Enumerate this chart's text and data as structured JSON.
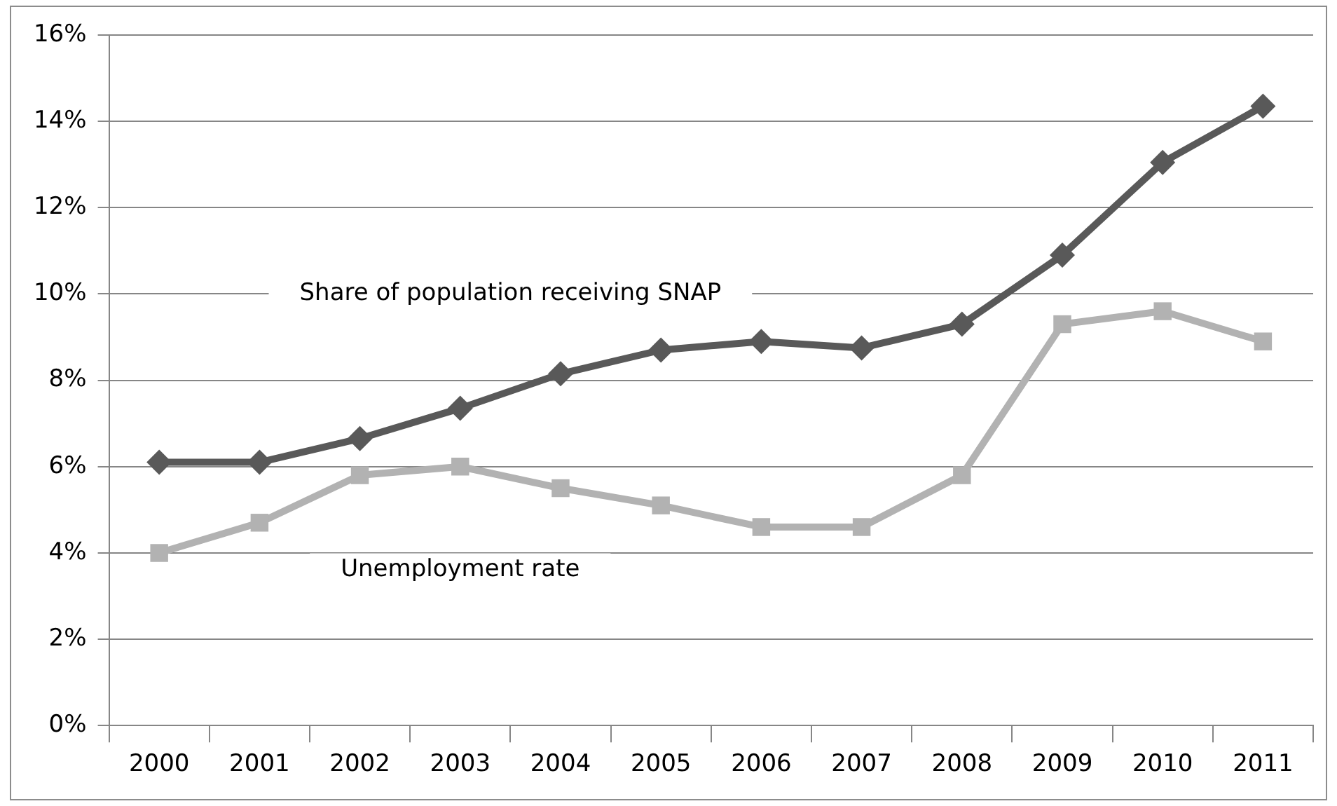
{
  "chart_data": {
    "type": "line",
    "categories": [
      "2000",
      "2001",
      "2002",
      "2003",
      "2004",
      "2005",
      "2006",
      "2007",
      "2008",
      "2009",
      "2010",
      "2011"
    ],
    "series": [
      {
        "name": "Share of population receiving SNAP",
        "color": "#595959",
        "marker": "diamond",
        "values": [
          6.1,
          6.1,
          6.65,
          7.35,
          8.15,
          8.7,
          8.9,
          8.75,
          9.3,
          10.9,
          13.05,
          14.35
        ]
      },
      {
        "name": "Unemployment rate",
        "color": "#b2b2b2",
        "marker": "square",
        "values": [
          4.0,
          4.7,
          5.8,
          6.0,
          5.5,
          5.1,
          4.6,
          4.6,
          5.8,
          9.3,
          9.6,
          8.9
        ]
      }
    ],
    "ylim": [
      0,
      16
    ],
    "yticks": [
      {
        "value": 0,
        "label": "0%"
      },
      {
        "value": 2,
        "label": "2%"
      },
      {
        "value": 4,
        "label": "4%"
      },
      {
        "value": 6,
        "label": "6%"
      },
      {
        "value": 8,
        "label": "8%"
      },
      {
        "value": 10,
        "label": "10%"
      },
      {
        "value": 12,
        "label": "12%"
      },
      {
        "value": 14,
        "label": "14%"
      },
      {
        "value": 16,
        "label": "16%"
      }
    ],
    "grid": "y",
    "legend": false,
    "line_style": "solid"
  }
}
